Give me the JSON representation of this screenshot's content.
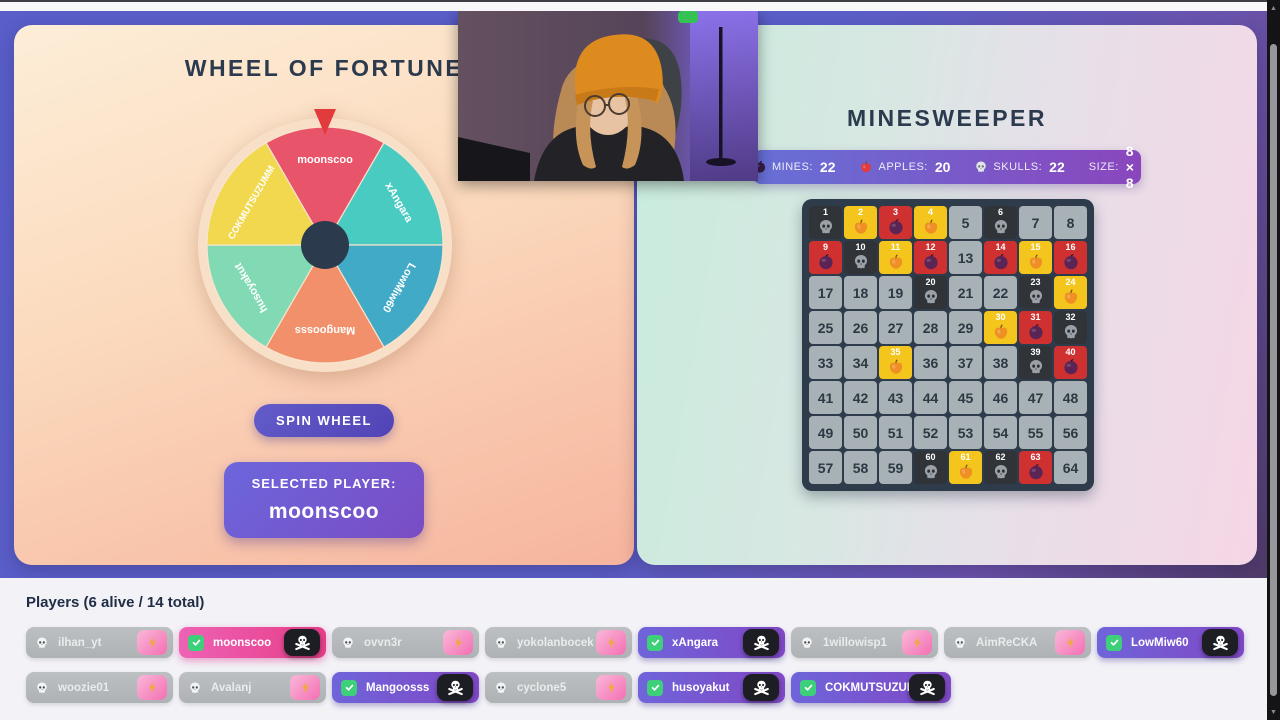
{
  "wheel_panel": {
    "title": "WHEEL OF FORTUNE",
    "spin_button": "SPIN WHEEL",
    "selected_player_label": "SELECTED PLAYER:",
    "selected_player_name": "moonscoo",
    "pointer_color": "#e23b3b",
    "ring_color": "#f8e0c8",
    "hub_color": "#2b3a4d",
    "segments": [
      {
        "label": "moonscoo",
        "color": "#e8556a"
      },
      {
        "label": "xAngara",
        "color": "#4acbc2"
      },
      {
        "label": "LowMiw60",
        "color": "#41aac6"
      },
      {
        "label": "Mangoosss",
        "color": "#f2906c"
      },
      {
        "label": "husoyakut",
        "color": "#82dab4"
      },
      {
        "label": "COKMUTSUZUMM",
        "color": "#f2d84f"
      }
    ]
  },
  "minesweeper_panel": {
    "title": "MINESWEEPER",
    "stats": [
      {
        "icon": "mine-icon",
        "label": "MINES:",
        "value": "22"
      },
      {
        "icon": "apple-icon",
        "label": "APPLES:",
        "value": "20"
      },
      {
        "icon": "skull-icon",
        "label": "SKULLS:",
        "value": "22"
      },
      {
        "icon": "",
        "label": "SIZE:",
        "value": "8 × 8"
      }
    ],
    "grid": {
      "size": 8,
      "count": 64,
      "specials": {
        "skull": [
          1,
          6,
          10,
          20,
          23,
          32,
          39,
          60,
          62
        ],
        "apple": [
          2,
          4,
          11,
          15,
          24,
          30,
          35,
          61
        ],
        "mine": [
          3,
          9,
          12,
          14,
          16,
          31,
          40,
          63
        ]
      },
      "cell_colors": {
        "closed": "#a7b1b6",
        "skull": "#303439",
        "apple": "#f3c51d",
        "mine": "#cf3131"
      }
    }
  },
  "players_panel": {
    "title": "Players (6 alive / 14 total)",
    "alive_color": "#7a55cc",
    "highlight_color": "#e63d88",
    "dead_color": "#b5b9bb",
    "rows": [
      [
        {
          "name": "ilhan_yt",
          "status": "dead"
        },
        {
          "name": "moonscoo",
          "status": "alive",
          "highlight": true
        },
        {
          "name": "ovvn3r",
          "status": "dead"
        },
        {
          "name": "yokolanbocek",
          "status": "dead"
        },
        {
          "name": "xAngara",
          "status": "alive"
        },
        {
          "name": "1willowisp1",
          "status": "dead"
        },
        {
          "name": "AimReCKA",
          "status": "dead"
        },
        {
          "name": "LowMiw60",
          "status": "alive"
        }
      ],
      [
        {
          "name": "woozie01",
          "status": "dead"
        },
        {
          "name": "Avalanj",
          "status": "dead"
        },
        {
          "name": "Mangoosss",
          "status": "alive"
        },
        {
          "name": "cyclone5",
          "status": "dead"
        },
        {
          "name": "husoyakut",
          "status": "alive"
        },
        {
          "name": "COKMUTSUZUMM",
          "status": "alive",
          "wide": true
        }
      ]
    ]
  }
}
